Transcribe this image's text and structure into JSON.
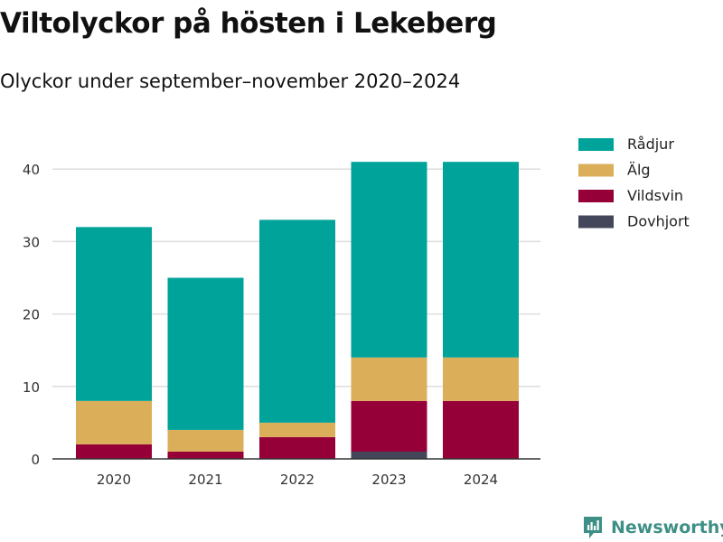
{
  "title": "Viltolyckor på hösten i Lekeberg",
  "subtitle": "Olyckor under september–november 2020–2024",
  "brand": "Newsworthy",
  "chart_data": {
    "type": "bar",
    "stacked": true,
    "categories": [
      "2020",
      "2021",
      "2022",
      "2023",
      "2024"
    ],
    "series": [
      {
        "name": "Dovhjort",
        "color": "#44475a",
        "values": [
          0,
          0,
          0,
          1,
          0
        ]
      },
      {
        "name": "Vildsvin",
        "color": "#960038",
        "values": [
          2,
          1,
          3,
          7,
          8
        ]
      },
      {
        "name": "Älg",
        "color": "#dbae5a",
        "values": [
          6,
          3,
          2,
          6,
          6
        ]
      },
      {
        "name": "Rådjur",
        "color": "#00a39a",
        "values": [
          24,
          21,
          28,
          27,
          27
        ]
      }
    ],
    "legend_order": [
      "Rådjur",
      "Älg",
      "Vildsvin",
      "Dovhjort"
    ],
    "yticks": [
      0,
      10,
      20,
      30,
      40
    ],
    "ylim": [
      0,
      42
    ],
    "grid": true,
    "legend_position": "top-right",
    "xlabel": "",
    "ylabel": ""
  }
}
